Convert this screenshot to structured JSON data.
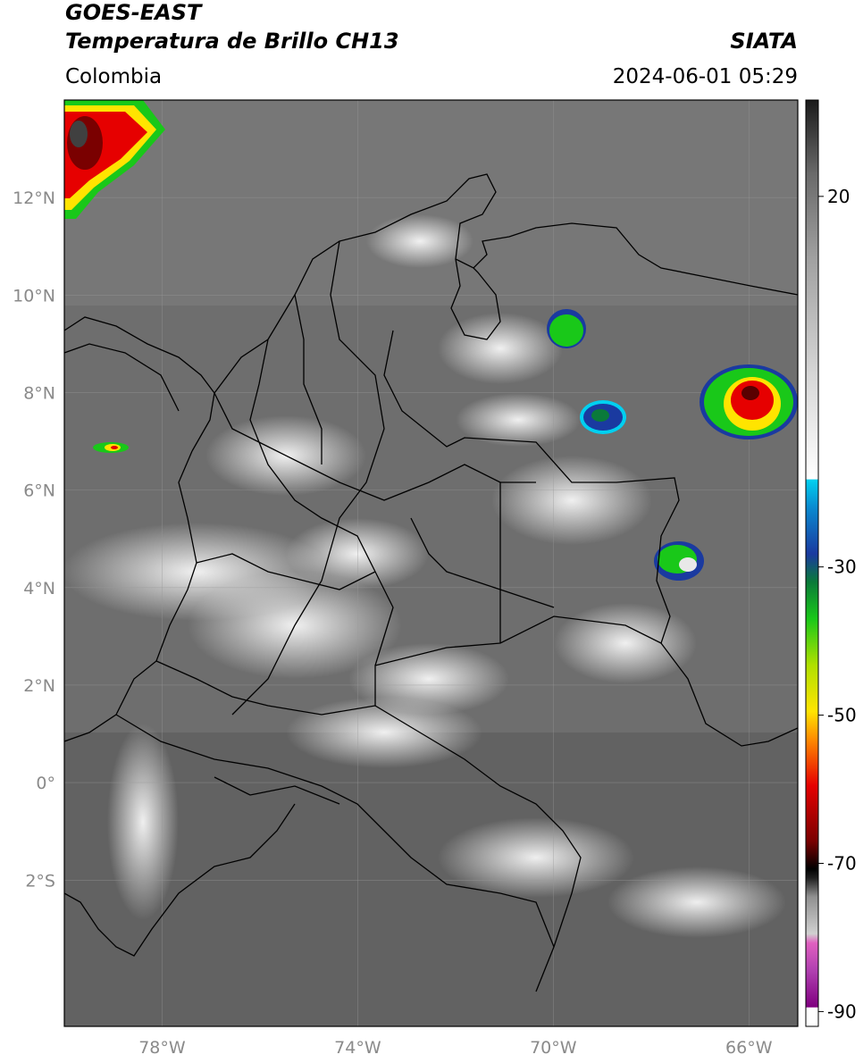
{
  "header": {
    "satellite": "GOES-EAST",
    "product": "Temperatura de Brillo CH13",
    "organization": "SIATA",
    "region": "Colombia",
    "datetime": "2024-06-01 05:29"
  },
  "map": {
    "lon_range": [
      -80.0,
      -65.0
    ],
    "lat_range": [
      -5.0,
      14.0
    ],
    "lat_ticks": [
      {
        "value": 12,
        "label": "12°N"
      },
      {
        "value": 10,
        "label": "10°N"
      },
      {
        "value": 8,
        "label": "8°N"
      },
      {
        "value": 6,
        "label": "6°N"
      },
      {
        "value": 4,
        "label": "4°N"
      },
      {
        "value": 2,
        "label": "2°N"
      },
      {
        "value": 0,
        "label": "0°"
      },
      {
        "value": -2,
        "label": "2°S"
      }
    ],
    "lon_ticks": [
      {
        "value": -78,
        "label": "78°W"
      },
      {
        "value": -74,
        "label": "74°W"
      },
      {
        "value": -70,
        "label": "70°W"
      },
      {
        "value": -66,
        "label": "66°W"
      }
    ],
    "gridlines": true,
    "storm_cells": [
      {
        "name": "storm-caribbean-nw",
        "lon": -79.0,
        "lat": 13.0,
        "peak": "deep-red"
      },
      {
        "name": "storm-venezuela-east",
        "lon": -66.0,
        "lat": 7.9,
        "peak": "deep-red"
      },
      {
        "name": "storm-apure",
        "lon": -68.8,
        "lat": 7.6,
        "peak": "blue"
      },
      {
        "name": "storm-lara",
        "lon": -70.1,
        "lat": 9.7,
        "peak": "green"
      },
      {
        "name": "storm-orinoco",
        "lon": -67.5,
        "lat": 4.6,
        "peak": "green"
      },
      {
        "name": "storm-pacific",
        "lon": -78.6,
        "lat": 6.9,
        "peak": "red"
      }
    ]
  },
  "colorbar": {
    "ticks": [
      {
        "value": 20,
        "label": "20"
      },
      {
        "value": -30,
        "label": "-30"
      },
      {
        "value": -50,
        "label": "-50"
      },
      {
        "value": -70,
        "label": "-70"
      },
      {
        "value": -90,
        "label": "-90"
      }
    ],
    "range": [
      -92,
      33
    ],
    "colors": {
      "warm_top": "#2b2b2b",
      "mid_gray": "#8c8c8c",
      "light": "#ffffff",
      "cyan": "#00d0f0",
      "blue": "#1a3aa0",
      "green": "#19c819",
      "yellow": "#ffe400",
      "orange": "#ff8c00",
      "red": "#e60000",
      "dark_red": "#7a0000",
      "black": "#000000",
      "gray_low": "#bfbfbf",
      "pink": "#e060c0",
      "purple": "#800080"
    }
  }
}
